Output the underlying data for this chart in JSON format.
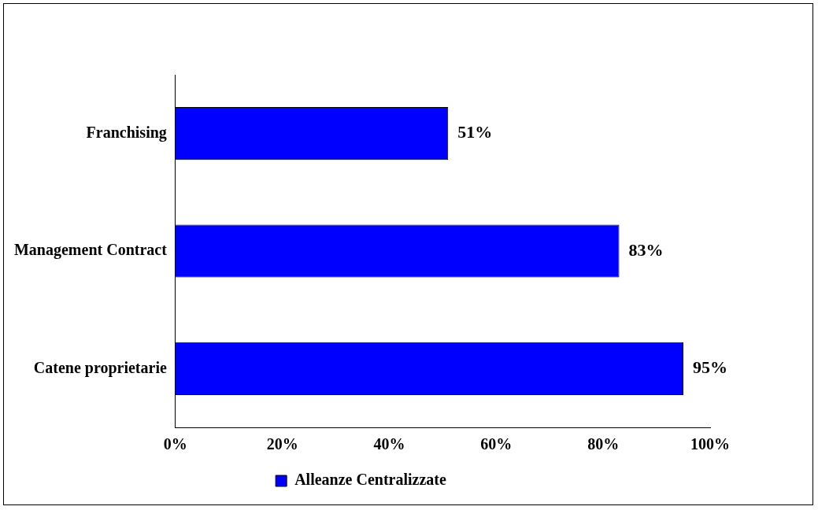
{
  "chart_data": {
    "type": "bar",
    "orientation": "horizontal",
    "categories": [
      "Franchising",
      "Management Contract",
      "Catene proprietarie"
    ],
    "series": [
      {
        "name": "Alleanze Centralizzate",
        "color": "#0000ff",
        "values": [
          51,
          83,
          95
        ],
        "value_labels": [
          "51%",
          "83%",
          "95%"
        ]
      }
    ],
    "xlim": [
      0,
      100
    ],
    "xticks": [
      {
        "value": 0,
        "label": "0%"
      },
      {
        "value": 20,
        "label": "20%"
      },
      {
        "value": 40,
        "label": "40%"
      },
      {
        "value": 60,
        "label": "60%"
      },
      {
        "value": 80,
        "label": "80%"
      },
      {
        "value": 100,
        "label": "100%"
      }
    ],
    "grid": false,
    "legend": "bottom"
  }
}
